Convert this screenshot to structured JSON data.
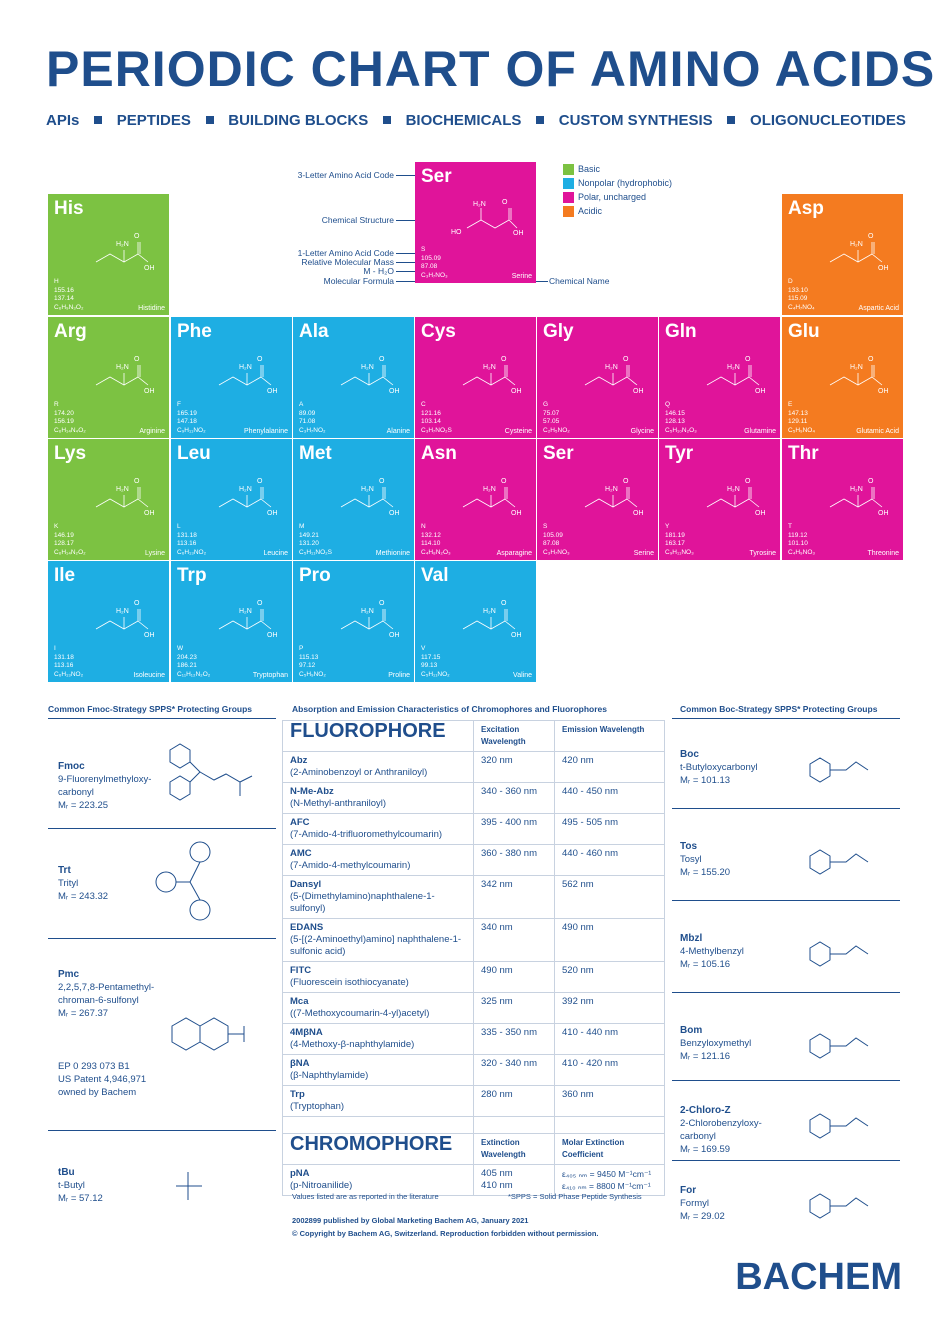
{
  "title": "PERIODIC CHART OF AMINO ACIDS",
  "subnav": [
    "APIs",
    "PEPTIDES",
    "BUILDING BLOCKS",
    "BIOCHEMICALS",
    "CUSTOM SYNTHESIS",
    "OLIGONUCLEOTIDES"
  ],
  "legend": {
    "items": [
      {
        "label": "Basic",
        "color": "#7cc242"
      },
      {
        "label": "Nonpolar (hydrophobic)",
        "color": "#1eaee3"
      },
      {
        "label": "Polar, uncharged",
        "color": "#e0149a"
      },
      {
        "label": "Acidic",
        "color": "#f47b20"
      }
    ]
  },
  "key": {
    "code3_label": "3-Letter Amino Acid Code",
    "structure_label": "Chemical Structure",
    "code1_label": "1-Letter Amino Acid Code",
    "mass_label": "Relative Molecular Mass",
    "mh2o_label": "M - H₂O",
    "formula_label": "Molecular Formula",
    "name_label": "Chemical Name",
    "tile": {
      "code3": "Ser",
      "code1": "S",
      "mass": "105.09",
      "mh2o": "87.08",
      "formula": "C₃H₇NO₃",
      "name": "Serine"
    }
  },
  "amino_acids": [
    {
      "code3": "His",
      "code1": "H",
      "mass": "155.16",
      "mh2o": "137.14",
      "formula": "C₆H₉N₃O₂",
      "name": "Histidine",
      "class": "basic"
    },
    {
      "code3": "Asp",
      "code1": "D",
      "mass": "133.10",
      "mh2o": "115.09",
      "formula": "C₄H₇NO₄",
      "name": "Aspartic Acid",
      "class": "acidic"
    },
    {
      "code3": "Arg",
      "code1": "R",
      "mass": "174.20",
      "mh2o": "156.19",
      "formula": "C₆H₁₄N₄O₂",
      "name": "Arginine",
      "class": "basic"
    },
    {
      "code3": "Phe",
      "code1": "F",
      "mass": "165.19",
      "mh2o": "147.18",
      "formula": "C₉H₁₁NO₂",
      "name": "Phenylalanine",
      "class": "nonpolar"
    },
    {
      "code3": "Ala",
      "code1": "A",
      "mass": "89.09",
      "mh2o": "71.08",
      "formula": "C₃H₇NO₂",
      "name": "Alanine",
      "class": "nonpolar"
    },
    {
      "code3": "Cys",
      "code1": "C",
      "mass": "121.16",
      "mh2o": "103.14",
      "formula": "C₃H₇NO₂S",
      "name": "Cysteine",
      "class": "polar"
    },
    {
      "code3": "Gly",
      "code1": "G",
      "mass": "75.07",
      "mh2o": "57.05",
      "formula": "C₂H₅NO₂",
      "name": "Glycine",
      "class": "polar"
    },
    {
      "code3": "Gln",
      "code1": "Q",
      "mass": "146.15",
      "mh2o": "128.13",
      "formula": "C₅H₁₀N₂O₃",
      "name": "Glutamine",
      "class": "polar"
    },
    {
      "code3": "Glu",
      "code1": "E",
      "mass": "147.13",
      "mh2o": "129.11",
      "formula": "C₅H₉NO₄",
      "name": "Glutamic Acid",
      "class": "acidic"
    },
    {
      "code3": "Lys",
      "code1": "K",
      "mass": "146.19",
      "mh2o": "128.17",
      "formula": "C₆H₁₄N₂O₂",
      "name": "Lysine",
      "class": "basic"
    },
    {
      "code3": "Leu",
      "code1": "L",
      "mass": "131.18",
      "mh2o": "113.16",
      "formula": "C₆H₁₃NO₂",
      "name": "Leucine",
      "class": "nonpolar"
    },
    {
      "code3": "Met",
      "code1": "M",
      "mass": "149.21",
      "mh2o": "131.20",
      "formula": "C₅H₁₁NO₂S",
      "name": "Methionine",
      "class": "nonpolar"
    },
    {
      "code3": "Asn",
      "code1": "N",
      "mass": "132.12",
      "mh2o": "114.10",
      "formula": "C₄H₈N₂O₃",
      "name": "Asparagine",
      "class": "polar"
    },
    {
      "code3": "Ser",
      "code1": "S",
      "mass": "105.09",
      "mh2o": "87.08",
      "formula": "C₃H₇NO₃",
      "name": "Serine",
      "class": "polar"
    },
    {
      "code3": "Tyr",
      "code1": "Y",
      "mass": "181.19",
      "mh2o": "163.17",
      "formula": "C₉H₁₁NO₃",
      "name": "Tyrosine",
      "class": "polar"
    },
    {
      "code3": "Thr",
      "code1": "T",
      "mass": "119.12",
      "mh2o": "101.10",
      "formula": "C₄H₉NO₃",
      "name": "Threonine",
      "class": "polar"
    },
    {
      "code3": "Ile",
      "code1": "I",
      "mass": "131.18",
      "mh2o": "113.16",
      "formula": "C₆H₁₃NO₂",
      "name": "Isoleucine",
      "class": "nonpolar"
    },
    {
      "code3": "Trp",
      "code1": "W",
      "mass": "204.23",
      "mh2o": "186.21",
      "formula": "C₁₁H₁₂N₂O₂",
      "name": "Tryptophan",
      "class": "nonpolar"
    },
    {
      "code3": "Pro",
      "code1": "P",
      "mass": "115.13",
      "mh2o": "97.12",
      "formula": "C₅H₉NO₂",
      "name": "Proline",
      "class": "nonpolar"
    },
    {
      "code3": "Val",
      "code1": "V",
      "mass": "117.15",
      "mh2o": "99.13",
      "formula": "C₅H₁₁NO₂",
      "name": "Valine",
      "class": "nonpolar"
    }
  ],
  "fmoc_section": {
    "title": "Common Fmoc-Strategy SPPS* Protecting Groups",
    "groups": [
      {
        "abbr": "Fmoc",
        "name": "9-Fluorenylmethyloxy-carbonyl",
        "mr": "Mᵣ = 223.25"
      },
      {
        "abbr": "Trt",
        "name": "Trityl",
        "mr": "Mᵣ = 243.32"
      },
      {
        "abbr": "Pmc",
        "name": "2,2,5,7,8-Pentamethyl-chroman-6-sulfonyl",
        "mr": "Mᵣ = 267.37",
        "note": "EP 0 293 073 B1\nUS Patent 4,946,971\nowned by Bachem"
      },
      {
        "abbr": "tBu",
        "name": "t-Butyl",
        "mr": "Mᵣ = 57.12"
      }
    ]
  },
  "boc_section": {
    "title": "Common Boc-Strategy SPPS* Protecting Groups",
    "groups": [
      {
        "abbr": "Boc",
        "name": "t-Butyloxycarbonyl",
        "mr": "Mᵣ = 101.13"
      },
      {
        "abbr": "Tos",
        "name": "Tosyl",
        "mr": "Mᵣ = 155.20"
      },
      {
        "abbr": "Mbzl",
        "name": "4-Methylbenzyl",
        "mr": "Mᵣ = 105.16"
      },
      {
        "abbr": "Bom",
        "name": "Benzyloxymethyl",
        "mr": "Mᵣ = 121.16"
      },
      {
        "abbr": "2-Chloro-Z",
        "name": "2-Chlorobenzyloxy-carbonyl",
        "mr": "Mᵣ = 169.59"
      },
      {
        "abbr": "For",
        "name": "Formyl",
        "mr": "Mᵣ = 29.02"
      }
    ]
  },
  "fluoro_section": {
    "title": "Absorption and Emission Characteristics of Chromophores and Fluorophores",
    "fluorophore_header": "FLUOROPHORE",
    "excitation_header": "Excitation Wavelength",
    "emission_header": "Emission Wavelength",
    "fluorophores": [
      {
        "abbr": "Abz",
        "name": "(2-Aminobenzoyl or Anthraniloyl)",
        "ex": "320 nm",
        "em": "420 nm"
      },
      {
        "abbr": "N-Me-Abz",
        "name": "(N-Methyl-anthraniloyl)",
        "ex": "340 - 360 nm",
        "em": "440 - 450 nm"
      },
      {
        "abbr": "AFC",
        "name": "(7-Amido-4-trifluoromethylcoumarin)",
        "ex": "395 - 400 nm",
        "em": "495 - 505 nm"
      },
      {
        "abbr": "AMC",
        "name": "(7-Amido-4-methylcoumarin)",
        "ex": "360 - 380 nm",
        "em": "440 - 460 nm"
      },
      {
        "abbr": "Dansyl",
        "name": "(5-(Dimethylamino)naphthalene-1-sulfonyl)",
        "ex": "342 nm",
        "em": "562 nm"
      },
      {
        "abbr": "EDANS",
        "name": "(5-[(2-Aminoethyl)amino] naphthalene-1-sulfonic acid)",
        "ex": "340 nm",
        "em": "490 nm"
      },
      {
        "abbr": "FITC",
        "name": "(Fluorescein isothiocyanate)",
        "ex": "490 nm",
        "em": "520 nm"
      },
      {
        "abbr": "Mca",
        "name": "((7-Methoxycoumarin-4-yl)acetyl)",
        "ex": "325 nm",
        "em": "392 nm"
      },
      {
        "abbr": "4MβNA",
        "name": "(4-Methoxy-β-naphthylamide)",
        "ex": "335 - 350 nm",
        "em": "410 - 440 nm"
      },
      {
        "abbr": "βNA",
        "name": "(β-Naphthylamide)",
        "ex": "320 - 340 nm",
        "em": "410 - 420 nm"
      },
      {
        "abbr": "Trp",
        "name": "(Tryptophan)",
        "ex": "280 nm",
        "em": "360 nm"
      }
    ],
    "chromophore_header": "CHROMOPHORE",
    "extinction_header": "Extinction Wavelength",
    "molar_header": "Molar Extinction Coefficient",
    "chromophore": {
      "abbr": "pNA",
      "name": "(p-Nitroanilide)",
      "ex1": "405 nm",
      "ex2": "410 nm",
      "mc1": "ε₄₀₅ ₙₘ = 9450 M⁻¹cm⁻¹",
      "mc2": "ε₄₁₀ ₙₘ = 8800 M⁻¹cm⁻¹"
    },
    "note_left": "Values listed are as reported in the literature",
    "note_right": "*SPPS = Solid Phase Peptide Synthesis"
  },
  "footer": {
    "line1": "2002899 published by Global Marketing Bachem AG, January 2021",
    "line2": "© Copyright by Bachem AG, Switzerland. Reproduction forbidden without permission.",
    "brand": "BACHEM"
  }
}
